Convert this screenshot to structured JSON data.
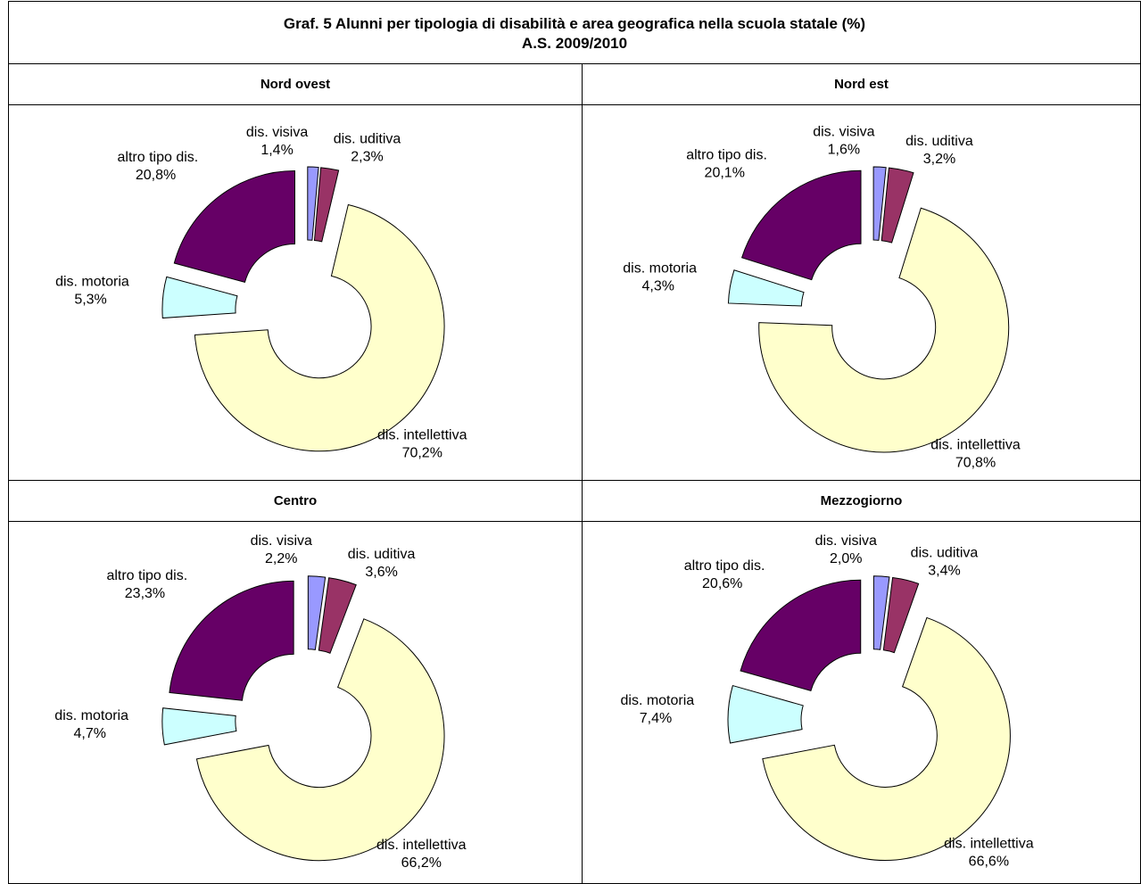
{
  "title": "Graf. 5 Alunni per tipologia di disabilità e area geografica nella scuola statale (%)",
  "subtitle": "A.S. 2009/2010",
  "chart_data": [
    {
      "type": "doughnut",
      "title": "Nord ovest",
      "categories": [
        "dis. visiva",
        "dis. uditiva",
        "dis. intellettiva",
        "dis. motoria",
        "altro tipo dis."
      ],
      "values": [
        1.4,
        2.3,
        70.2,
        5.3,
        20.8
      ],
      "value_labels": [
        "1,4%",
        "2,3%",
        "70,2%",
        "5,3%",
        "20,8%"
      ],
      "colors": [
        "#9999ff",
        "#993366",
        "#ffffcc",
        "#ccffff",
        "#660066"
      ]
    },
    {
      "type": "doughnut",
      "title": "Nord est",
      "categories": [
        "dis. visiva",
        "dis. uditiva",
        "dis. intellettiva",
        "dis. motoria",
        "altro tipo dis."
      ],
      "values": [
        1.6,
        3.2,
        70.8,
        4.3,
        20.1
      ],
      "value_labels": [
        "1,6%",
        "3,2%",
        "70,8%",
        "4,3%",
        "20,1%"
      ],
      "colors": [
        "#9999ff",
        "#993366",
        "#ffffcc",
        "#ccffff",
        "#660066"
      ]
    },
    {
      "type": "doughnut",
      "title": "Centro",
      "categories": [
        "dis. visiva",
        "dis. uditiva",
        "dis. intellettiva",
        "dis. motoria",
        "altro tipo dis."
      ],
      "values": [
        2.2,
        3.6,
        66.2,
        4.7,
        23.3
      ],
      "value_labels": [
        "2,2%",
        "3,6%",
        "66,2%",
        "4,7%",
        "23,3%"
      ],
      "colors": [
        "#9999ff",
        "#993366",
        "#ffffcc",
        "#ccffff",
        "#660066"
      ]
    },
    {
      "type": "doughnut",
      "title": "Mezzogiorno",
      "categories": [
        "dis. visiva",
        "dis. uditiva",
        "dis. intellettiva",
        "dis. motoria",
        "altro tipo dis."
      ],
      "values": [
        2.0,
        3.4,
        66.6,
        7.4,
        20.6
      ],
      "value_labels": [
        "2,0%",
        "3,4%",
        "66,6%",
        "7,4%",
        "20,6%"
      ],
      "colors": [
        "#9999ff",
        "#993366",
        "#ffffcc",
        "#ccffff",
        "#660066"
      ]
    }
  ]
}
